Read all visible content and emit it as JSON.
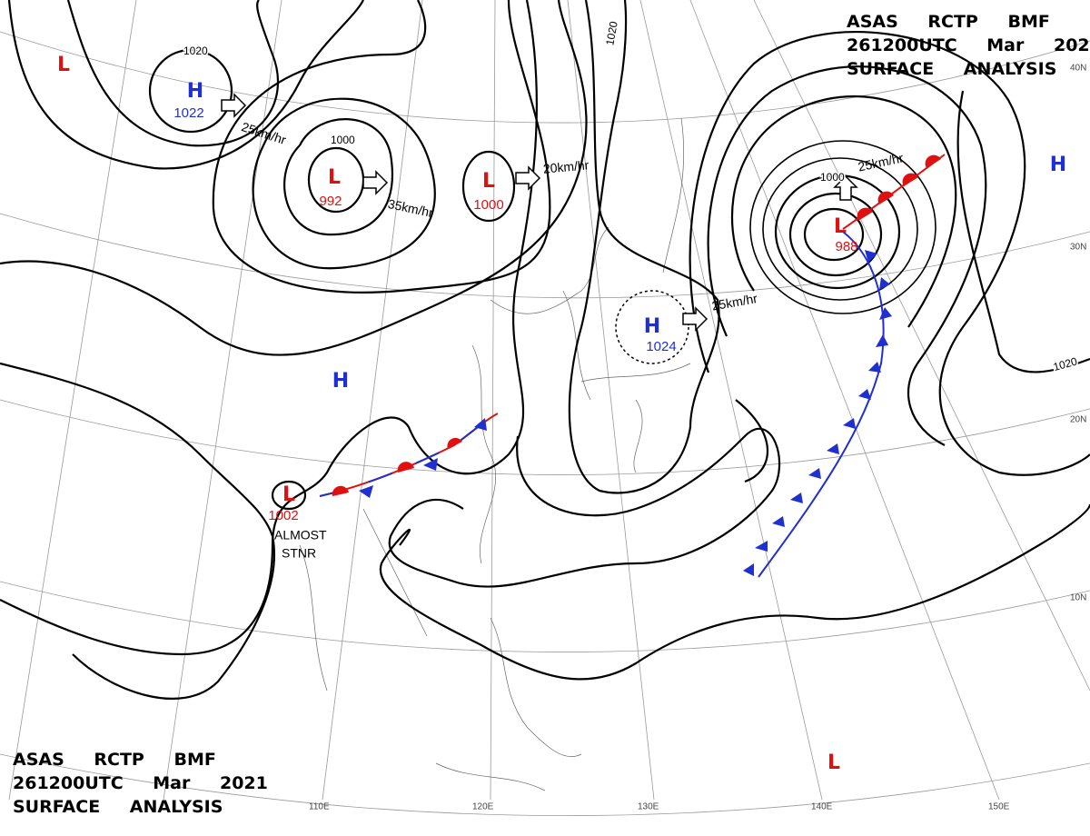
{
  "header": {
    "lines": [
      "ASAS RCTP BMF",
      "261200UTC Mar 2021",
      "SURFACE ANALYSIS"
    ]
  },
  "systems": [
    {
      "symbol": "H",
      "value": "1022",
      "color": "#1f2fd0"
    },
    {
      "symbol": "L",
      "value": "992",
      "color": "#e01010"
    },
    {
      "symbol": "L",
      "value": "1000",
      "color": "#e01010"
    },
    {
      "symbol": "L",
      "value": "988",
      "color": "#e01010"
    },
    {
      "symbol": "H",
      "value": "1024",
      "color": "#1f2fd0"
    },
    {
      "symbol": "L",
      "value": "1002",
      "color": "#e01010"
    },
    {
      "symbol": "H",
      "color": "#1f2fd0"
    },
    {
      "symbol": "H",
      "color": "#1f2fd0"
    },
    {
      "symbol": "L",
      "color": "#e01010"
    },
    {
      "symbol": "L",
      "color": "#e01010"
    }
  ],
  "motions": [
    "25km/hr",
    "35km/hr",
    "20km/hr",
    "25km/hr",
    "25km/hr"
  ],
  "isobar_labels": [
    "1020",
    "1000",
    "1020",
    "1000",
    "1020"
  ],
  "annotation": [
    "ALMOST",
    "STNR"
  ],
  "longitudes": [
    "110E",
    "120E",
    "130E",
    "140E",
    "150E"
  ],
  "latitudes": [
    "40N",
    "30N",
    "20N",
    "10N"
  ]
}
